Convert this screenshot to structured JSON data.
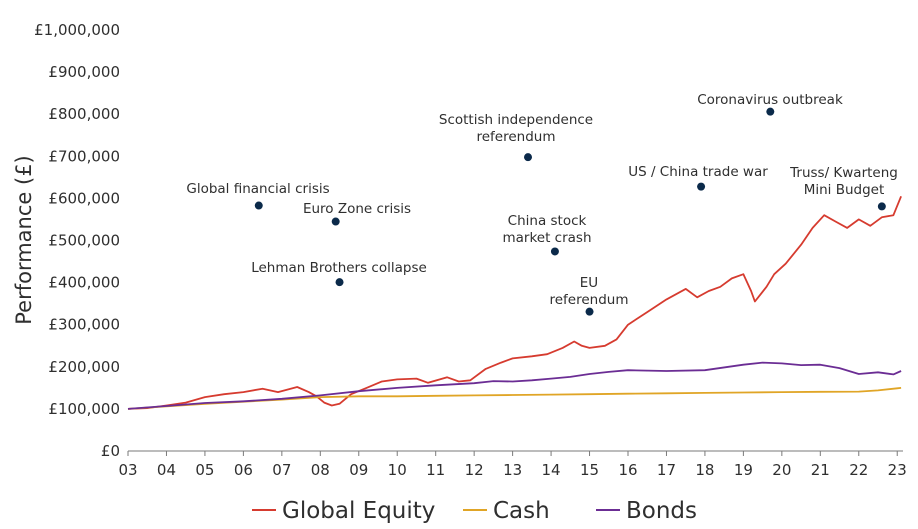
{
  "chart_data": {
    "type": "line",
    "ylabel": "Performance (£)",
    "xlabel": "",
    "ylim": [
      0,
      1000000
    ],
    "xlim": [
      2003,
      2023.1
    ],
    "y_ticks": [
      0,
      100000,
      200000,
      300000,
      400000,
      500000,
      600000,
      700000,
      800000,
      900000,
      1000000
    ],
    "y_tick_labels": [
      "£0",
      "£100,000",
      "£200,000",
      "£300,000",
      "£400,000",
      "£500,000",
      "£600,000",
      "£700,000",
      "£800,000",
      "£900,000",
      "£1,000,000"
    ],
    "x_ticks": [
      2003,
      2004,
      2005,
      2006,
      2007,
      2008,
      2009,
      2010,
      2011,
      2012,
      2013,
      2014,
      2015,
      2016,
      2017,
      2018,
      2019,
      2020,
      2021,
      2022,
      2023
    ],
    "x_tick_labels": [
      "03",
      "04",
      "05",
      "06",
      "07",
      "08",
      "09",
      "10",
      "11",
      "12",
      "13",
      "14",
      "15",
      "16",
      "17",
      "18",
      "19",
      "20",
      "21",
      "22",
      "23"
    ],
    "grid": false,
    "legend": "bottom",
    "series": [
      {
        "name": "Global Equity",
        "color": "#d63b2f",
        "points": [
          [
            2003,
            100000
          ],
          [
            2003.5,
            102000
          ],
          [
            2004,
            108000
          ],
          [
            2004.5,
            115000
          ],
          [
            2005,
            128000
          ],
          [
            2005.5,
            135000
          ],
          [
            2006,
            140000
          ],
          [
            2006.5,
            148000
          ],
          [
            2006.9,
            140000
          ],
          [
            2007.4,
            152000
          ],
          [
            2007.7,
            140000
          ],
          [
            2007.9,
            130000
          ],
          [
            2008.1,
            115000
          ],
          [
            2008.3,
            108000
          ],
          [
            2008.5,
            112000
          ],
          [
            2008.8,
            135000
          ],
          [
            2009.2,
            150000
          ],
          [
            2009.6,
            165000
          ],
          [
            2010,
            170000
          ],
          [
            2010.5,
            172000
          ],
          [
            2010.8,
            162000
          ],
          [
            2011.3,
            175000
          ],
          [
            2011.6,
            165000
          ],
          [
            2011.9,
            168000
          ],
          [
            2012.3,
            195000
          ],
          [
            2012.7,
            210000
          ],
          [
            2013,
            220000
          ],
          [
            2013.5,
            225000
          ],
          [
            2013.9,
            230000
          ],
          [
            2014.3,
            245000
          ],
          [
            2014.6,
            260000
          ],
          [
            2014.8,
            250000
          ],
          [
            2015,
            245000
          ],
          [
            2015.4,
            250000
          ],
          [
            2015.7,
            265000
          ],
          [
            2016,
            300000
          ],
          [
            2016.5,
            330000
          ],
          [
            2017,
            360000
          ],
          [
            2017.5,
            385000
          ],
          [
            2017.8,
            365000
          ],
          [
            2018.1,
            380000
          ],
          [
            2018.4,
            390000
          ],
          [
            2018.7,
            410000
          ],
          [
            2019,
            420000
          ],
          [
            2019.2,
            380000
          ],
          [
            2019.3,
            355000
          ],
          [
            2019.6,
            390000
          ],
          [
            2019.8,
            420000
          ],
          [
            2020.1,
            445000
          ],
          [
            2020.5,
            490000
          ],
          [
            2020.8,
            530000
          ],
          [
            2021.1,
            560000
          ],
          [
            2021.4,
            545000
          ],
          [
            2021.7,
            530000
          ],
          [
            2022,
            550000
          ],
          [
            2022.3,
            535000
          ],
          [
            2022.6,
            555000
          ],
          [
            2022.9,
            560000
          ],
          [
            2023.1,
            605000
          ]
        ]
      },
      {
        "name": "Cash",
        "color": "#e0a526",
        "points": [
          [
            2003,
            100000
          ],
          [
            2004,
            106000
          ],
          [
            2005,
            112000
          ],
          [
            2006,
            117000
          ],
          [
            2007,
            122000
          ],
          [
            2008,
            128000
          ],
          [
            2009,
            130000
          ],
          [
            2010,
            130000
          ],
          [
            2011,
            131000
          ],
          [
            2012,
            132000
          ],
          [
            2013,
            133000
          ],
          [
            2014,
            134000
          ],
          [
            2015,
            135000
          ],
          [
            2016,
            136000
          ],
          [
            2017,
            137000
          ],
          [
            2018,
            138000
          ],
          [
            2019,
            139000
          ],
          [
            2020,
            140000
          ],
          [
            2021,
            140500
          ],
          [
            2022,
            141000
          ],
          [
            2022.5,
            144000
          ],
          [
            2023,
            149000
          ],
          [
            2023.1,
            150000
          ]
        ]
      },
      {
        "name": "Bonds",
        "color": "#6b2d94",
        "points": [
          [
            2003,
            100000
          ],
          [
            2004,
            107000
          ],
          [
            2005,
            114000
          ],
          [
            2006,
            118000
          ],
          [
            2007,
            124000
          ],
          [
            2008,
            132000
          ],
          [
            2009,
            142000
          ],
          [
            2010,
            150000
          ],
          [
            2011,
            156000
          ],
          [
            2012,
            161000
          ],
          [
            2012.5,
            166000
          ],
          [
            2013,
            165000
          ],
          [
            2013.5,
            168000
          ],
          [
            2014,
            172000
          ],
          [
            2014.5,
            176000
          ],
          [
            2015,
            183000
          ],
          [
            2015.5,
            188000
          ],
          [
            2016,
            192000
          ],
          [
            2017,
            190000
          ],
          [
            2018,
            192000
          ],
          [
            2019,
            205000
          ],
          [
            2019.5,
            210000
          ],
          [
            2020,
            208000
          ],
          [
            2020.5,
            204000
          ],
          [
            2021,
            205000
          ],
          [
            2021.5,
            197000
          ],
          [
            2022,
            183000
          ],
          [
            2022.5,
            187000
          ],
          [
            2022.9,
            182000
          ],
          [
            2023.1,
            190000
          ]
        ]
      }
    ],
    "annotations": [
      {
        "lines": [
          "Global financial crisis"
        ],
        "point": [
          2006.4,
          583000
        ]
      },
      {
        "lines": [
          "Lehman Brothers collapse"
        ],
        "point": [
          2008.5,
          401000
        ]
      },
      {
        "lines": [
          "Euro Zone crisis"
        ],
        "point": [
          2008.4,
          545000
        ]
      },
      {
        "lines": [
          "Scottish  independence",
          "referendum"
        ],
        "point": [
          2013.4,
          698000
        ]
      },
      {
        "lines": [
          "China stock",
          "market crash"
        ],
        "point": [
          2014.1,
          474000
        ]
      },
      {
        "lines": [
          "EU",
          "referendum"
        ],
        "point": [
          2015,
          331000
        ]
      },
      {
        "lines": [
          "US / China trade war"
        ],
        "point": [
          2017.9,
          628000
        ]
      },
      {
        "lines": [
          "Coronavirus outbreak"
        ],
        "point": [
          2019.7,
          806000
        ]
      },
      {
        "lines": [
          "Truss/ Kwarteng",
          "Mini Budget"
        ],
        "point": [
          2022.6,
          581000
        ]
      }
    ],
    "marker_color": "#0b2a4a"
  }
}
